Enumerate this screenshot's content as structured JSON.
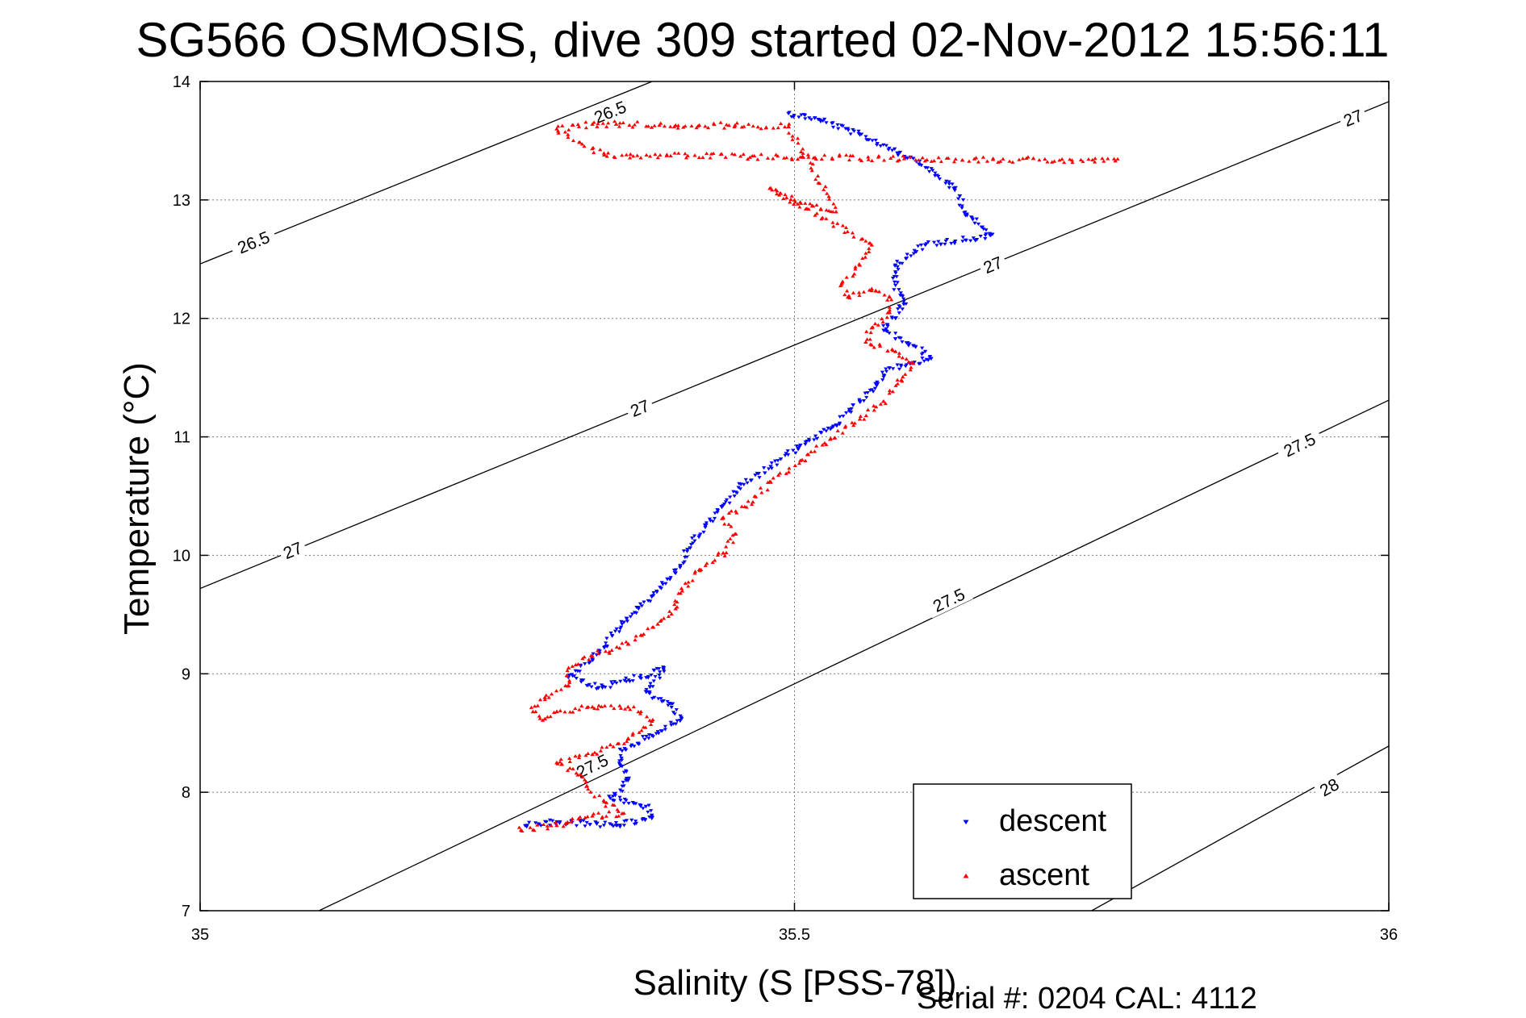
{
  "chart_data": {
    "type": "scatter",
    "title": "SG566 OSMOSIS, dive 309 started 02-Nov-2012 15:56:11",
    "xlabel": "Salinity (S [PSS-78])",
    "ylabel": "Temperature (°C)",
    "footer": "Serial #: 0204  CAL: 4112",
    "xlim": [
      35,
      36
    ],
    "ylim": [
      7,
      14
    ],
    "xticks": [
      35,
      35.5,
      36
    ],
    "xtick_labels": [
      "35",
      "35.5",
      "36"
    ],
    "yticks": [
      7,
      8,
      9,
      10,
      11,
      12,
      13,
      14
    ],
    "ytick_labels": [
      "7",
      "8",
      "9",
      "10",
      "11",
      "12",
      "13",
      "14"
    ],
    "grid": true,
    "legend_position": "bottom-right",
    "contours": [
      {
        "level": "26.5",
        "points": [
          [
            35,
            12.46
          ],
          [
            35.4,
            14.08
          ]
        ],
        "labels": [
          {
            "x": 35.045,
            "y": 12.64
          },
          {
            "x": 35.345,
            "y": 13.74
          }
        ]
      },
      {
        "level": "27",
        "points": [
          [
            35,
            9.72
          ],
          [
            36,
            13.83
          ]
        ],
        "labels": [
          {
            "x": 35.078,
            "y": 10.04
          },
          {
            "x": 35.37,
            "y": 11.24
          },
          {
            "x": 35.667,
            "y": 12.45
          },
          {
            "x": 35.97,
            "y": 13.69
          }
        ]
      },
      {
        "level": "27.5",
        "points": [
          [
            35.1,
            7
          ],
          [
            36,
            11.31
          ]
        ],
        "labels": [
          {
            "x": 35.33,
            "y": 8.22
          },
          {
            "x": 35.63,
            "y": 9.62
          },
          {
            "x": 35.925,
            "y": 10.93
          }
        ]
      },
      {
        "level": "28",
        "points": [
          [
            35.75,
            7
          ],
          [
            36,
            8.39
          ]
        ],
        "labels": [
          {
            "x": 35.95,
            "y": 8.04
          }
        ]
      }
    ],
    "series": [
      {
        "name": "descent",
        "color": "#0000ff",
        "marker": "triangle-down",
        "path": [
          [
            35.495,
            13.73
          ],
          [
            35.52,
            13.68
          ],
          [
            35.555,
            13.55
          ],
          [
            35.6,
            13.35
          ],
          [
            35.635,
            13.1
          ],
          [
            35.645,
            12.88
          ],
          [
            35.665,
            12.7
          ],
          [
            35.61,
            12.62
          ],
          [
            35.585,
            12.45
          ],
          [
            35.585,
            12.28
          ],
          [
            35.592,
            12.12
          ],
          [
            35.575,
            11.9
          ],
          [
            35.6,
            11.77
          ],
          [
            35.615,
            11.66
          ],
          [
            35.58,
            11.58
          ],
          [
            35.57,
            11.45
          ],
          [
            35.555,
            11.3
          ],
          [
            35.535,
            11.1
          ],
          [
            35.505,
            10.93
          ],
          [
            35.48,
            10.75
          ],
          [
            35.455,
            10.6
          ],
          [
            35.44,
            10.42
          ],
          [
            35.425,
            10.25
          ],
          [
            35.41,
            10.05
          ],
          [
            35.4,
            9.85
          ],
          [
            35.38,
            9.65
          ],
          [
            35.355,
            9.42
          ],
          [
            35.34,
            9.22
          ],
          [
            35.33,
            9.12
          ],
          [
            35.31,
            8.98
          ],
          [
            35.335,
            8.88
          ],
          [
            35.37,
            8.97
          ],
          [
            35.39,
            9.05
          ],
          [
            35.375,
            8.85
          ],
          [
            35.395,
            8.75
          ],
          [
            35.405,
            8.62
          ],
          [
            35.38,
            8.48
          ],
          [
            35.355,
            8.35
          ],
          [
            35.355,
            8.22
          ],
          [
            35.36,
            8.1
          ],
          [
            35.345,
            7.95
          ],
          [
            35.375,
            7.88
          ],
          [
            35.38,
            7.78
          ],
          [
            35.35,
            7.72
          ],
          [
            35.3,
            7.75
          ],
          [
            35.275,
            7.72
          ]
        ],
        "count": 620
      },
      {
        "name": "ascent",
        "color": "#ff0000",
        "marker": "triangle-up",
        "path": [
          [
            35.27,
            7.68
          ],
          [
            35.3,
            7.72
          ],
          [
            35.33,
            7.8
          ],
          [
            35.355,
            7.82
          ],
          [
            35.34,
            7.92
          ],
          [
            35.325,
            8.05
          ],
          [
            35.32,
            8.15
          ],
          [
            35.3,
            8.25
          ],
          [
            35.33,
            8.32
          ],
          [
            35.36,
            8.45
          ],
          [
            35.38,
            8.6
          ],
          [
            35.36,
            8.72
          ],
          [
            35.33,
            8.72
          ],
          [
            35.3,
            8.68
          ],
          [
            35.29,
            8.62
          ],
          [
            35.28,
            8.68
          ],
          [
            35.29,
            8.8
          ],
          [
            35.31,
            8.9
          ],
          [
            35.31,
            9.05
          ],
          [
            35.33,
            9.15
          ],
          [
            35.36,
            9.25
          ],
          [
            35.385,
            9.42
          ],
          [
            35.4,
            9.55
          ],
          [
            35.405,
            9.72
          ],
          [
            35.42,
            9.88
          ],
          [
            35.44,
            10.02
          ],
          [
            35.45,
            10.18
          ],
          [
            35.44,
            10.32
          ],
          [
            35.465,
            10.45
          ],
          [
            35.48,
            10.62
          ],
          [
            35.505,
            10.8
          ],
          [
            35.53,
            10.98
          ],
          [
            35.555,
            11.15
          ],
          [
            35.575,
            11.3
          ],
          [
            35.59,
            11.48
          ],
          [
            35.6,
            11.62
          ],
          [
            35.585,
            11.72
          ],
          [
            35.56,
            11.8
          ],
          [
            35.565,
            11.92
          ],
          [
            35.58,
            12.05
          ],
          [
            35.58,
            12.18
          ],
          [
            35.565,
            12.25
          ],
          [
            35.545,
            12.18
          ],
          [
            35.54,
            12.3
          ],
          [
            35.555,
            12.45
          ],
          [
            35.565,
            12.62
          ],
          [
            35.48,
            13.1
          ],
          [
            35.5,
            13.0
          ],
          [
            35.515,
            12.95
          ],
          [
            35.535,
            12.9
          ],
          [
            35.495,
            13.62
          ],
          [
            35.45,
            13.63
          ],
          [
            35.4,
            13.63
          ],
          [
            35.35,
            13.64
          ],
          [
            35.33,
            13.64
          ],
          [
            35.3,
            13.6
          ],
          [
            35.34,
            13.38
          ],
          [
            35.77,
            13.33
          ]
        ],
        "count": 620
      }
    ]
  }
}
